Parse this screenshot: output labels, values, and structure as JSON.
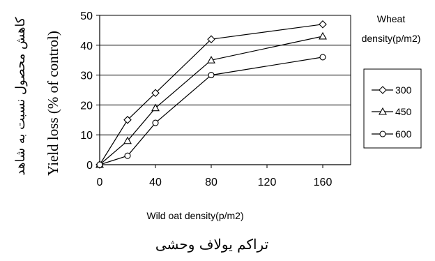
{
  "chart_data": {
    "type": "line",
    "x_labels": [
      "0",
      "40",
      "80",
      "120",
      "160"
    ],
    "x_positions": [
      0,
      40,
      80,
      120,
      160
    ],
    "xlim": [
      0,
      180
    ],
    "ylim": [
      0,
      50
    ],
    "y_ticks": [
      "0",
      "10",
      "20",
      "30",
      "40",
      "50"
    ],
    "xlabel": "Wild oat density(p/m2)",
    "xlabel_fa": "تراکم یولاف وحشی",
    "ylabel": "Yield loss (% of control)",
    "ylabel_fa": "کاهش محصول نسبت به شاهد",
    "legend_title_line1": "Wheat",
    "legend_title_line2": "density(p/m2)",
    "grid": "horizontal",
    "legend_position": "right",
    "series": [
      {
        "name": "300",
        "marker": "diamond",
        "x": [
          0,
          20,
          40,
          80,
          160
        ],
        "values": [
          0,
          15,
          24,
          42,
          47
        ]
      },
      {
        "name": "450",
        "marker": "triangle",
        "x": [
          0,
          20,
          40,
          80,
          160
        ],
        "values": [
          0,
          8,
          19,
          35,
          43
        ]
      },
      {
        "name": "600",
        "marker": "circle",
        "x": [
          0,
          20,
          40,
          80,
          160
        ],
        "values": [
          0,
          3,
          14,
          30,
          36
        ]
      }
    ]
  }
}
